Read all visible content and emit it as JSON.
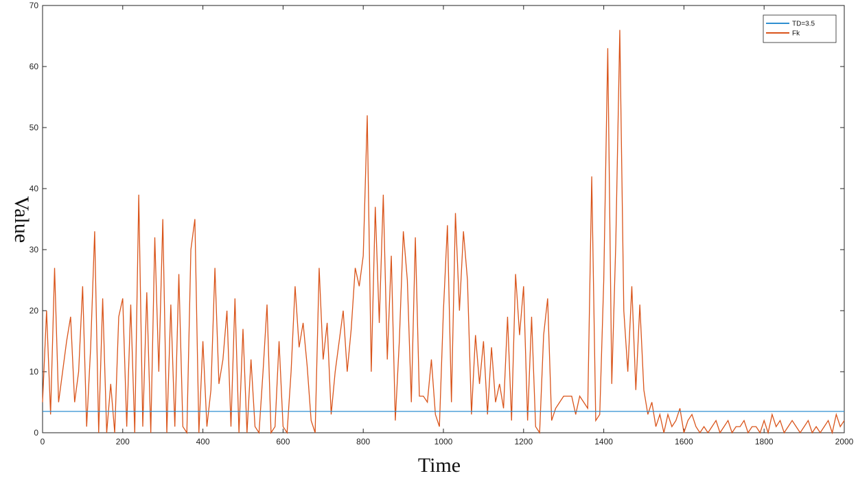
{
  "chart_data": {
    "type": "line",
    "xlabel": "Time",
    "ylabel": "Value",
    "xlim": [
      0,
      2000
    ],
    "ylim": [
      0,
      70
    ],
    "xticks": [
      0,
      200,
      400,
      600,
      800,
      1000,
      1200,
      1400,
      1600,
      1800,
      2000
    ],
    "yticks": [
      0,
      10,
      20,
      30,
      40,
      50,
      60,
      70
    ],
    "legend": "top-right",
    "series": [
      {
        "name": "TD=3.5",
        "color": "#2e8fd0",
        "x": [
          0,
          2000
        ],
        "values": [
          3.5,
          3.5
        ]
      },
      {
        "name": "Fk",
        "color": "#d95319",
        "x": [
          0,
          10,
          20,
          30,
          40,
          50,
          60,
          70,
          80,
          90,
          100,
          110,
          120,
          130,
          140,
          150,
          160,
          170,
          180,
          190,
          200,
          210,
          220,
          230,
          240,
          250,
          260,
          270,
          280,
          290,
          300,
          310,
          320,
          330,
          340,
          350,
          360,
          370,
          380,
          390,
          400,
          410,
          420,
          430,
          440,
          450,
          460,
          470,
          480,
          490,
          500,
          510,
          520,
          530,
          540,
          550,
          560,
          570,
          580,
          590,
          600,
          610,
          620,
          630,
          640,
          650,
          660,
          670,
          680,
          690,
          700,
          710,
          720,
          730,
          740,
          750,
          760,
          770,
          780,
          790,
          800,
          810,
          820,
          830,
          840,
          850,
          860,
          870,
          880,
          890,
          900,
          910,
          920,
          930,
          940,
          950,
          960,
          970,
          980,
          990,
          1000,
          1010,
          1020,
          1030,
          1040,
          1050,
          1060,
          1070,
          1080,
          1090,
          1100,
          1110,
          1120,
          1130,
          1140,
          1150,
          1160,
          1170,
          1180,
          1190,
          1200,
          1210,
          1220,
          1230,
          1240,
          1250,
          1260,
          1270,
          1280,
          1290,
          1300,
          1310,
          1320,
          1330,
          1340,
          1350,
          1360,
          1370,
          1380,
          1390,
          1400,
          1410,
          1420,
          1430,
          1440,
          1450,
          1460,
          1470,
          1480,
          1490,
          1500,
          1510,
          1520,
          1530,
          1540,
          1550,
          1560,
          1570,
          1580,
          1590,
          1600,
          1610,
          1620,
          1630,
          1640,
          1650,
          1660,
          1670,
          1680,
          1690,
          1700,
          1710,
          1720,
          1730,
          1740,
          1750,
          1760,
          1770,
          1780,
          1790,
          1800,
          1810,
          1820,
          1830,
          1840,
          1850,
          1860,
          1870,
          1880,
          1890,
          1900,
          1910,
          1920,
          1930,
          1940,
          1950,
          1960,
          1970,
          1980,
          1990,
          2000
        ],
        "values": [
          5,
          20,
          3,
          27,
          5,
          10,
          15,
          19,
          5,
          10,
          24,
          1,
          14,
          33,
          0,
          22,
          0,
          8,
          0,
          19,
          22,
          1,
          21,
          0,
          39,
          1,
          23,
          0,
          32,
          10,
          35,
          0,
          21,
          1,
          26,
          1,
          0,
          30,
          35,
          0,
          15,
          1,
          7,
          27,
          8,
          12,
          20,
          1,
          22,
          0,
          17,
          0,
          12,
          1,
          0,
          10,
          21,
          0,
          1,
          15,
          1,
          0,
          10,
          24,
          14,
          18,
          11,
          2,
          0,
          27,
          12,
          18,
          3,
          10,
          15,
          20,
          10,
          17,
          27,
          24,
          29,
          52,
          10,
          37,
          18,
          39,
          12,
          29,
          2,
          15,
          33,
          25,
          5,
          32,
          6,
          6,
          5,
          12,
          3,
          1,
          20,
          34,
          5,
          36,
          20,
          33,
          25,
          3,
          16,
          8,
          15,
          3,
          14,
          5,
          8,
          4,
          19,
          2,
          26,
          16,
          24,
          2,
          19,
          1,
          0,
          16,
          22,
          2,
          4,
          5,
          6,
          6,
          6,
          3,
          6,
          5,
          4,
          42,
          2,
          3,
          25,
          63,
          8,
          31,
          66,
          20,
          10,
          24,
          7,
          21,
          7,
          3,
          5,
          1,
          3,
          0,
          3,
          1,
          2,
          4,
          0,
          2,
          3,
          1,
          0,
          1,
          0,
          1,
          2,
          0,
          1,
          2,
          0,
          1,
          1,
          2,
          0,
          1,
          1,
          0,
          2,
          0,
          3,
          1,
          2,
          0,
          1,
          2,
          1,
          0,
          1,
          2,
          0,
          1,
          0,
          1,
          2,
          0,
          3,
          1,
          2
        ]
      }
    ]
  }
}
